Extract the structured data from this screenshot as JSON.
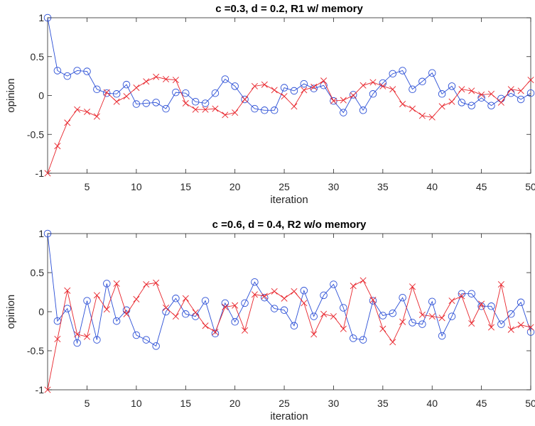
{
  "colors": {
    "series_blue": "#2b4fd6",
    "series_red": "#e8242b",
    "axis": "#262626"
  },
  "chart_data": [
    {
      "type": "line",
      "title": "c =0.3, d = 0.2, R1 w/ memory",
      "xlabel": "iteration",
      "ylabel": "opinion",
      "xlim": [
        1,
        50
      ],
      "ylim": [
        -1,
        1
      ],
      "xticks": [
        5,
        10,
        15,
        20,
        25,
        30,
        35,
        40,
        45,
        50
      ],
      "yticks": [
        -1,
        -0.5,
        0,
        0.5,
        1
      ],
      "ytick_labels": [
        "-1",
        "-0.5",
        "0",
        "0.5",
        "1"
      ],
      "grid": false,
      "x": [
        1,
        2,
        3,
        4,
        5,
        6,
        7,
        8,
        9,
        10,
        11,
        12,
        13,
        14,
        15,
        16,
        17,
        18,
        19,
        20,
        21,
        22,
        23,
        24,
        25,
        26,
        27,
        28,
        29,
        30,
        31,
        32,
        33,
        34,
        35,
        36,
        37,
        38,
        39,
        40,
        41,
        42,
        43,
        44,
        45,
        46,
        47,
        48,
        49,
        50
      ],
      "series": [
        {
          "marker": "circle",
          "color": "#2b4fd6",
          "values": [
            1.0,
            0.32,
            0.25,
            0.32,
            0.31,
            0.08,
            0.03,
            0.02,
            0.14,
            -0.11,
            -0.1,
            -0.09,
            -0.17,
            0.04,
            0.03,
            -0.08,
            -0.1,
            0.03,
            0.21,
            0.12,
            -0.05,
            -0.17,
            -0.19,
            -0.19,
            0.1,
            0.06,
            0.15,
            0.09,
            0.13,
            -0.07,
            -0.22,
            0.01,
            -0.19,
            0.02,
            0.16,
            0.28,
            0.32,
            0.08,
            0.18,
            0.29,
            0.02,
            0.12,
            -0.09,
            -0.13,
            -0.03,
            -0.13,
            -0.04,
            0.03,
            -0.05,
            0.03
          ]
        },
        {
          "marker": "x",
          "color": "#e8242b",
          "values": [
            -1.0,
            -0.65,
            -0.35,
            -0.18,
            -0.21,
            -0.27,
            0.04,
            -0.08,
            -0.01,
            0.1,
            0.18,
            0.24,
            0.21,
            0.2,
            -0.1,
            -0.18,
            -0.18,
            -0.17,
            -0.25,
            -0.22,
            -0.05,
            0.12,
            0.14,
            0.07,
            -0.01,
            -0.14,
            0.07,
            0.11,
            0.19,
            -0.07,
            -0.06,
            0.0,
            0.13,
            0.17,
            0.12,
            0.08,
            -0.11,
            -0.17,
            -0.26,
            -0.28,
            -0.14,
            -0.08,
            0.08,
            0.06,
            0.01,
            0.02,
            -0.09,
            0.08,
            0.06,
            0.2
          ]
        }
      ]
    },
    {
      "type": "line",
      "title": "c =0.6, d = 0.4, R2 w/o memory",
      "xlabel": "iteration",
      "ylabel": "opinion",
      "xlim": [
        1,
        50
      ],
      "ylim": [
        -1,
        1
      ],
      "xticks": [
        5,
        10,
        15,
        20,
        25,
        30,
        35,
        40,
        45,
        50
      ],
      "yticks": [
        -1,
        -0.5,
        0,
        0.5,
        1
      ],
      "ytick_labels": [
        "-1",
        "-0.5",
        "0",
        "0.5",
        "1"
      ],
      "grid": false,
      "x": [
        1,
        2,
        3,
        4,
        5,
        6,
        7,
        8,
        9,
        10,
        11,
        12,
        13,
        14,
        15,
        16,
        17,
        18,
        19,
        20,
        21,
        22,
        23,
        24,
        25,
        26,
        27,
        28,
        29,
        30,
        31,
        32,
        33,
        34,
        35,
        36,
        37,
        38,
        39,
        40,
        41,
        42,
        43,
        44,
        45,
        46,
        47,
        48,
        49,
        50
      ],
      "series": [
        {
          "marker": "circle",
          "color": "#2b4fd6",
          "values": [
            1.0,
            -0.12,
            0.04,
            -0.4,
            0.14,
            -0.36,
            0.36,
            -0.12,
            0.02,
            -0.3,
            -0.36,
            -0.44,
            0.0,
            0.17,
            -0.03,
            -0.06,
            0.14,
            -0.28,
            0.11,
            -0.13,
            0.11,
            0.38,
            0.18,
            0.04,
            0.02,
            -0.18,
            0.27,
            -0.06,
            0.21,
            0.35,
            0.05,
            -0.34,
            -0.36,
            0.14,
            -0.05,
            -0.02,
            0.18,
            -0.14,
            -0.16,
            0.13,
            -0.31,
            -0.06,
            0.23,
            0.23,
            0.07,
            0.07,
            -0.16,
            -0.03,
            0.12,
            -0.26
          ]
        },
        {
          "marker": "x",
          "color": "#e8242b",
          "values": [
            -1.0,
            -0.35,
            0.27,
            -0.29,
            -0.32,
            0.21,
            0.03,
            0.36,
            -0.03,
            0.16,
            0.35,
            0.37,
            0.05,
            -0.06,
            0.17,
            -0.01,
            -0.18,
            -0.26,
            0.06,
            0.08,
            -0.24,
            0.22,
            0.2,
            0.26,
            0.17,
            0.26,
            0.11,
            -0.29,
            -0.03,
            -0.06,
            -0.22,
            0.33,
            0.4,
            0.15,
            -0.22,
            -0.39,
            -0.13,
            0.32,
            -0.04,
            -0.06,
            -0.08,
            0.14,
            0.2,
            -0.15,
            0.1,
            -0.2,
            0.35,
            -0.23,
            -0.17,
            -0.2
          ]
        }
      ]
    }
  ]
}
